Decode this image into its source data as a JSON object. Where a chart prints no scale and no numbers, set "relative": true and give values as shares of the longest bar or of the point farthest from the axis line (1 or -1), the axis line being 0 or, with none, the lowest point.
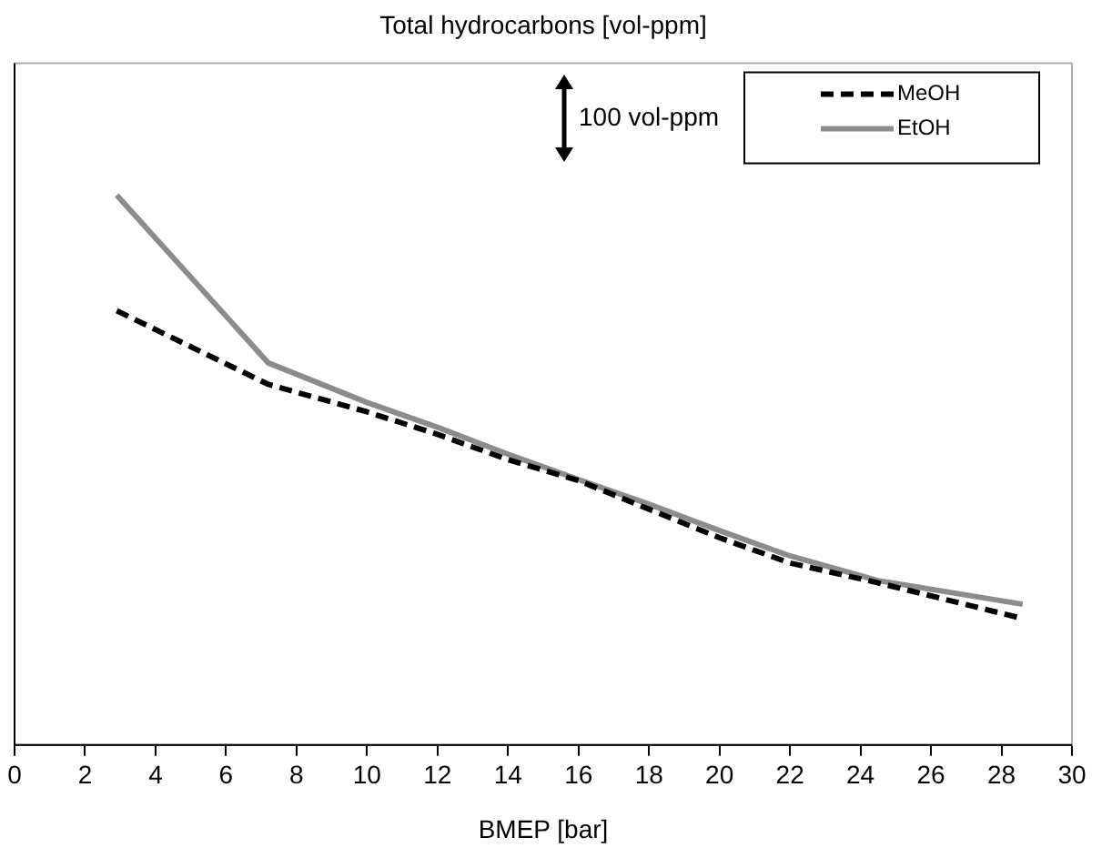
{
  "chart_data": {
    "type": "line",
    "title": "Total hydrocarbons [vol-ppm]",
    "xlabel": "BMEP [bar]",
    "relative": true,
    "xlim": [
      0,
      30
    ],
    "xticks": [
      0,
      2,
      4,
      6,
      8,
      10,
      12,
      14,
      16,
      18,
      20,
      22,
      24,
      26,
      28,
      30
    ],
    "grid": false,
    "legend": "top right",
    "marker": "none",
    "annotations": [
      "100 vol-ppm"
    ],
    "series": [
      {
        "name": "MeOH",
        "color": "#000000",
        "line_style": "dashed",
        "x": [
          2.9,
          7.2,
          10,
          12,
          14,
          16,
          18,
          20,
          22,
          24.5,
          28.6
        ],
        "values": [
          0.79,
          0.656,
          0.606,
          0.565,
          0.519,
          0.481,
          0.429,
          0.377,
          0.331,
          0.295,
          0.23
        ]
      },
      {
        "name": "EtOH",
        "color": "#8c8c8c",
        "line_style": "solid",
        "x": [
          2.9,
          7.2,
          10,
          12,
          14,
          16,
          18,
          20,
          22,
          24.5,
          28.6
        ],
        "values": [
          1,
          0.695,
          0.623,
          0.578,
          0.529,
          0.483,
          0.438,
          0.39,
          0.344,
          0.299,
          0.256
        ]
      }
    ]
  }
}
